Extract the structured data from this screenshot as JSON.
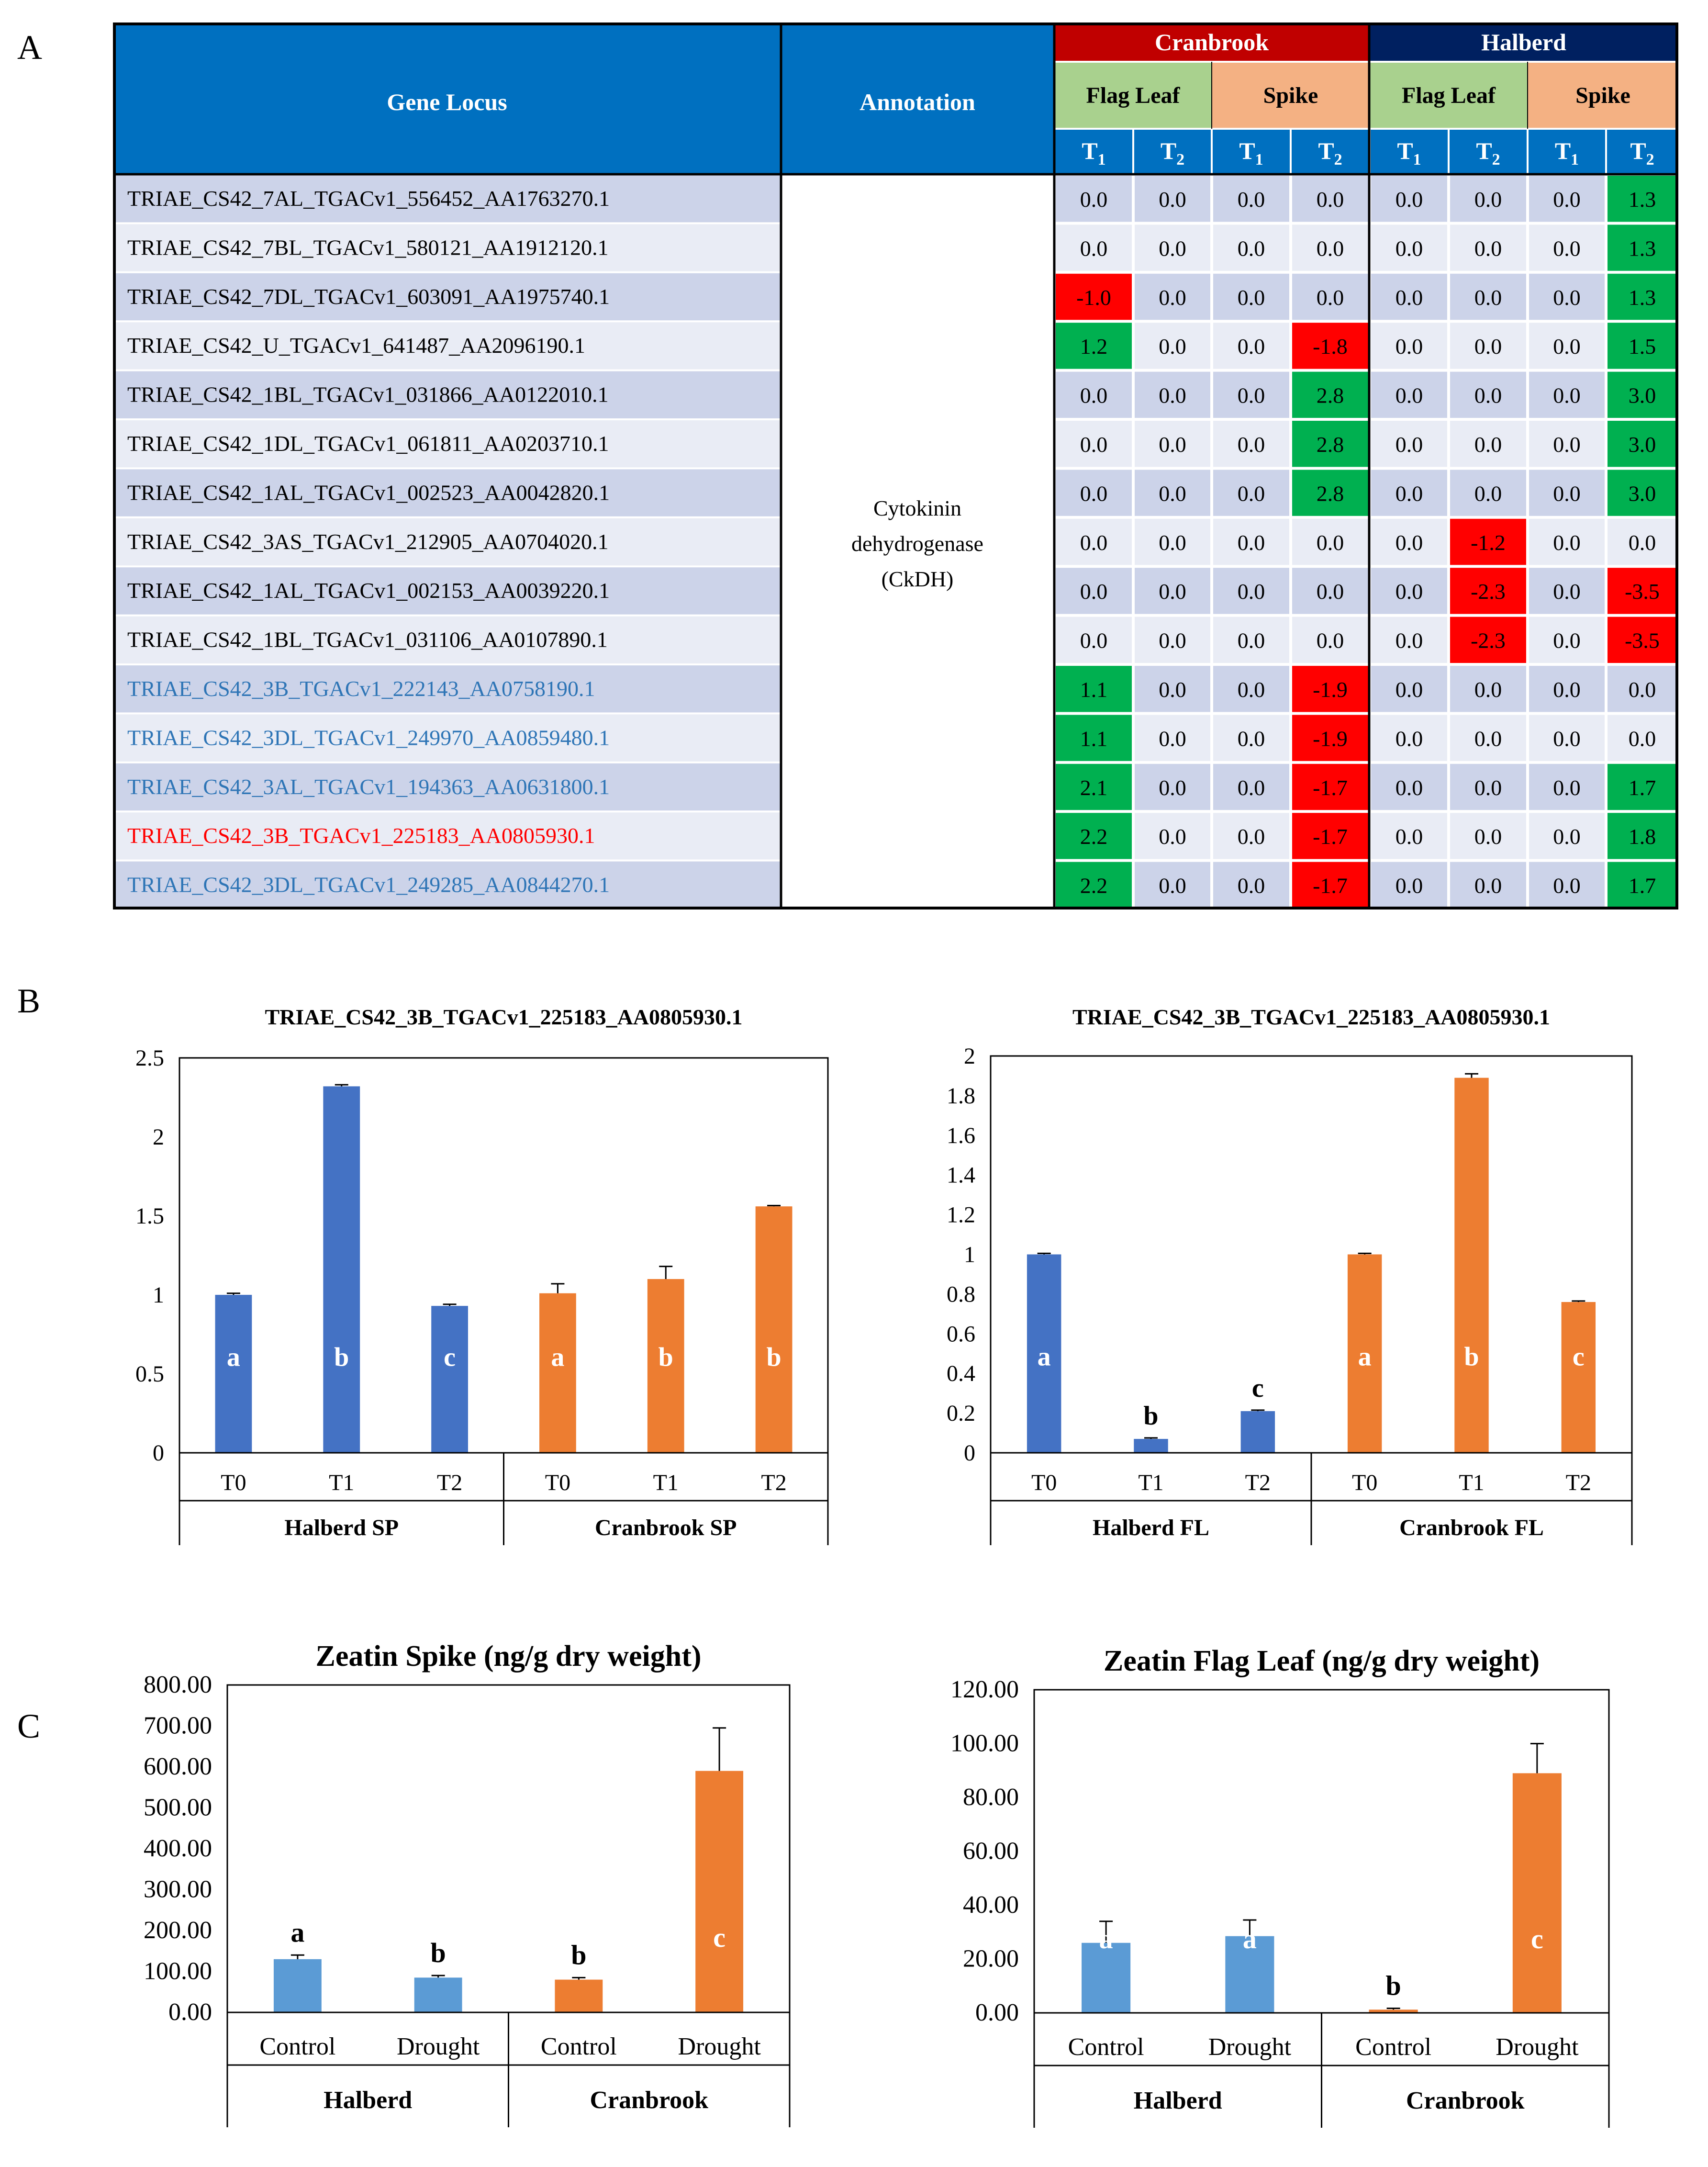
{
  "panel_labels": [
    "A",
    "B",
    "C"
  ],
  "table": {
    "col_headers": {
      "gene_locus": "Gene Locus",
      "annotation": "Annotation"
    },
    "cultivars": [
      "Cranbrook",
      "Halberd"
    ],
    "tissues": [
      "Flag Leaf",
      "Spike",
      "Flag Leaf",
      "Spike"
    ],
    "time_labels": [
      "T",
      "T",
      "T",
      "T",
      "T",
      "T",
      "T",
      "T"
    ],
    "time_subs": [
      "1",
      "2",
      "1",
      "2",
      "1",
      "2",
      "1",
      "2"
    ],
    "annotation_lines": [
      "Cytokinin",
      "dehydrogenase",
      "(CkDH)"
    ],
    "rows": [
      {
        "locus": "TRIAE_CS42_7AL_TGACv1_556452_AA1763270.1",
        "color": "#000000",
        "values": [
          "0.0",
          "0.0",
          "0.0",
          "0.0",
          "0.0",
          "0.0",
          "0.0",
          "1.3"
        ]
      },
      {
        "locus": "TRIAE_CS42_7BL_TGACv1_580121_AA1912120.1",
        "color": "#000000",
        "values": [
          "0.0",
          "0.0",
          "0.0",
          "0.0",
          "0.0",
          "0.0",
          "0.0",
          "1.3"
        ]
      },
      {
        "locus": "TRIAE_CS42_7DL_TGACv1_603091_AA1975740.1",
        "color": "#000000",
        "values": [
          "-1.0",
          "0.0",
          "0.0",
          "0.0",
          "0.0",
          "0.0",
          "0.0",
          "1.3"
        ]
      },
      {
        "locus": "TRIAE_CS42_U_TGACv1_641487_AA2096190.1",
        "color": "#000000",
        "values": [
          "1.2",
          "0.0",
          "0.0",
          "-1.8",
          "0.0",
          "0.0",
          "0.0",
          "1.5"
        ]
      },
      {
        "locus": "TRIAE_CS42_1BL_TGACv1_031866_AA0122010.1",
        "color": "#000000",
        "values": [
          "0.0",
          "0.0",
          "0.0",
          "2.8",
          "0.0",
          "0.0",
          "0.0",
          "3.0"
        ]
      },
      {
        "locus": "TRIAE_CS42_1DL_TGACv1_061811_AA0203710.1",
        "color": "#000000",
        "values": [
          "0.0",
          "0.0",
          "0.0",
          "2.8",
          "0.0",
          "0.0",
          "0.0",
          "3.0"
        ]
      },
      {
        "locus": "TRIAE_CS42_1AL_TGACv1_002523_AA0042820.1",
        "color": "#000000",
        "values": [
          "0.0",
          "0.0",
          "0.0",
          "2.8",
          "0.0",
          "0.0",
          "0.0",
          "3.0"
        ]
      },
      {
        "locus": "TRIAE_CS42_3AS_TGACv1_212905_AA0704020.1",
        "color": "#000000",
        "values": [
          "0.0",
          "0.0",
          "0.0",
          "0.0",
          "0.0",
          "-1.2",
          "0.0",
          "0.0"
        ]
      },
      {
        "locus": "TRIAE_CS42_1AL_TGACv1_002153_AA0039220.1",
        "color": "#000000",
        "values": [
          "0.0",
          "0.0",
          "0.0",
          "0.0",
          "0.0",
          "-2.3",
          "0.0",
          "-3.5"
        ]
      },
      {
        "locus": "TRIAE_CS42_1BL_TGACv1_031106_AA0107890.1",
        "color": "#000000",
        "values": [
          "0.0",
          "0.0",
          "0.0",
          "0.0",
          "0.0",
          "-2.3",
          "0.0",
          "-3.5"
        ]
      },
      {
        "locus": "TRIAE_CS42_3B_TGACv1_222143_AA0758190.1",
        "color": "#2e75b6",
        "values": [
          "1.1",
          "0.0",
          "0.0",
          "-1.9",
          "0.0",
          "0.0",
          "0.0",
          "0.0"
        ]
      },
      {
        "locus": "TRIAE_CS42_3DL_TGACv1_249970_AA0859480.1",
        "color": "#2e75b6",
        "values": [
          "1.1",
          "0.0",
          "0.0",
          "-1.9",
          "0.0",
          "0.0",
          "0.0",
          "0.0"
        ]
      },
      {
        "locus": "TRIAE_CS42_3AL_TGACv1_194363_AA0631800.1",
        "color": "#2e75b6",
        "values": [
          "2.1",
          "0.0",
          "0.0",
          "-1.7",
          "0.0",
          "0.0",
          "0.0",
          "1.7"
        ]
      },
      {
        "locus": "TRIAE_CS42_3B_TGACv1_225183_AA0805930.1",
        "color": "#ff0000",
        "values": [
          "2.2",
          "0.0",
          "0.0",
          "-1.7",
          "0.0",
          "0.0",
          "0.0",
          "1.8"
        ]
      },
      {
        "locus": "TRIAE_CS42_3DL_TGACv1_249285_AA0844270.1",
        "color": "#2e75b6",
        "values": [
          "2.2",
          "0.0",
          "0.0",
          "-1.7",
          "0.0",
          "0.0",
          "0.0",
          "1.7"
        ]
      }
    ]
  },
  "colors": {
    "header_blue": "#0070c0",
    "cranbrook_red": "#c00000",
    "halberd_navy": "#002060",
    "flag_leaf_green": "#a9d18e",
    "spike_peach": "#f4b183",
    "cell_a": "#ccd3e9",
    "cell_b": "#e9ecf5",
    "up_green": "#00b050",
    "down_red": "#ff0000",
    "bar_blue": "#4472c4",
    "bar_orange": "#ed7d31",
    "bar_lightblue": "#5b9bd5"
  },
  "chart_data": [
    {
      "type": "bar",
      "title": "TRIAE_CS42_3B_TGACv1_225183_AA0805930.1",
      "categories": [
        "T0",
        "T1",
        "T2",
        "T0",
        "T1",
        "T2"
      ],
      "groups": [
        "Halberd SP",
        "Cranbrook SP"
      ],
      "values": [
        1.0,
        2.32,
        0.93,
        1.01,
        1.1,
        1.56
      ],
      "errors": [
        0.01,
        0.01,
        0.01,
        0.06,
        0.08,
        0.005
      ],
      "letters": [
        "a",
        "b",
        "c",
        "a",
        "b",
        "b"
      ],
      "letter_inside": [
        true,
        true,
        true,
        true,
        true,
        true
      ],
      "colors": [
        "#4472c4",
        "#4472c4",
        "#4472c4",
        "#ed7d31",
        "#ed7d31",
        "#ed7d31"
      ],
      "ylim": [
        0,
        2.5
      ],
      "yticks": [
        0,
        0.5,
        1,
        1.5,
        2,
        2.5
      ],
      "ytick_labels": [
        "0",
        "0.5",
        "1",
        "1.5",
        "2",
        "2.5"
      ],
      "xlabel": "",
      "ylabel": "",
      "grid": false
    },
    {
      "type": "bar",
      "title": "TRIAE_CS42_3B_TGACv1_225183_AA0805930.1",
      "categories": [
        "T0",
        "T1",
        "T2",
        "T0",
        "T1",
        "T2"
      ],
      "groups": [
        "Halberd FL",
        "Cranbrook FL"
      ],
      "values": [
        1.0,
        0.07,
        0.21,
        1.0,
        1.89,
        0.76
      ],
      "errors": [
        0.005,
        0.005,
        0.005,
        0.005,
        0.02,
        0.005
      ],
      "letters": [
        "a",
        "b",
        "c",
        "a",
        "b",
        "c"
      ],
      "letter_inside": [
        true,
        false,
        false,
        true,
        true,
        true
      ],
      "colors": [
        "#4472c4",
        "#4472c4",
        "#4472c4",
        "#ed7d31",
        "#ed7d31",
        "#ed7d31"
      ],
      "ylim": [
        0,
        2
      ],
      "yticks": [
        0,
        0.2,
        0.4,
        0.6,
        0.8,
        1,
        1.2,
        1.4,
        1.6,
        1.8,
        2
      ],
      "ytick_labels": [
        "0",
        "0.2",
        "0.4",
        "0.6",
        "0.8",
        "1",
        "1.2",
        "1.4",
        "1.6",
        "1.8",
        "2"
      ],
      "xlabel": "",
      "ylabel": "",
      "grid": false
    },
    {
      "type": "bar",
      "title": "Zeatin Spike (ng/g dry weight)",
      "categories": [
        "Control",
        "Drought",
        "Control",
        "Drought"
      ],
      "groups": [
        "Halberd",
        "Cranbrook"
      ],
      "values": [
        130,
        85,
        80,
        590
      ],
      "errors": [
        10,
        5,
        5,
        105
      ],
      "letters": [
        "a",
        "b",
        "b",
        "c"
      ],
      "letter_inside": [
        false,
        false,
        false,
        true
      ],
      "colors": [
        "#5b9bd5",
        "#5b9bd5",
        "#ed7d31",
        "#ed7d31"
      ],
      "ylim": [
        0,
        800
      ],
      "yticks": [
        0,
        100,
        200,
        300,
        400,
        500,
        600,
        700,
        800
      ],
      "ytick_labels": [
        "0.00",
        "100.00",
        "200.00",
        "300.00",
        "400.00",
        "500.00",
        "600.00",
        "700.00",
        "800.00"
      ],
      "xlabel": "",
      "ylabel": "",
      "grid": false
    },
    {
      "type": "bar",
      "title": "Zeatin Flag Leaf (ng/g dry weight)",
      "categories": [
        "Control",
        "Drought",
        "Control",
        "Drought"
      ],
      "groups": [
        "Halberd",
        "Cranbrook"
      ],
      "values": [
        26,
        28.5,
        1.2,
        89
      ],
      "errors": [
        8,
        6,
        0.5,
        11
      ],
      "letters": [
        "a",
        "a",
        "b",
        "c"
      ],
      "letter_inside": [
        true,
        true,
        false,
        true
      ],
      "colors": [
        "#5b9bd5",
        "#5b9bd5",
        "#ed7d31",
        "#ed7d31"
      ],
      "ylim": [
        0,
        120
      ],
      "yticks": [
        0,
        20,
        40,
        60,
        80,
        100,
        120
      ],
      "ytick_labels": [
        "0.00",
        "20.00",
        "40.00",
        "60.00",
        "80.00",
        "100.00",
        "120.00"
      ],
      "xlabel": "",
      "ylabel": "",
      "grid": false
    }
  ]
}
